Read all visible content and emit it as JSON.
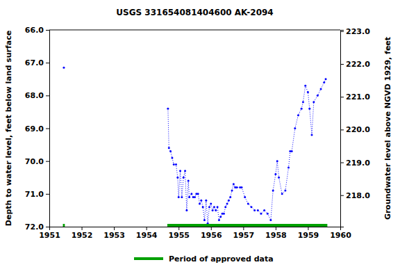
{
  "chart_data": {
    "type": "line",
    "title": "USGS 331654081404600 AK-2094",
    "y_label": "Depth to water level, feet below land surface",
    "y2_label": "Groundwater level above NGVD 1929, feet",
    "xlim": [
      1951,
      1960
    ],
    "xticks": [
      1951,
      1952,
      1953,
      1954,
      1955,
      1956,
      1957,
      1958,
      1959,
      1960
    ],
    "ylim": [
      66,
      72
    ],
    "yticks": [
      {
        "value": 66,
        "label": "66.0"
      },
      {
        "value": 67,
        "label": "67.0"
      },
      {
        "value": 68,
        "label": "68.0"
      },
      {
        "value": 69,
        "label": "69.0"
      },
      {
        "value": 70,
        "label": "70.0"
      },
      {
        "value": 71,
        "label": "71.0"
      },
      {
        "value": 72,
        "label": "72.0"
      }
    ],
    "y2lim": [
      223.04,
      217.04
    ],
    "y2ticks": [
      {
        "value": 223,
        "label": "223.0"
      },
      {
        "value": 222,
        "label": "222.0"
      },
      {
        "value": 221,
        "label": "221.0"
      },
      {
        "value": 220,
        "label": "220.0"
      },
      {
        "value": 219,
        "label": "219.0"
      },
      {
        "value": 218,
        "label": "218.0"
      }
    ],
    "grid": false,
    "legend": "bottom",
    "series": [
      {
        "type": "line",
        "color": "#0000ff",
        "line_style": "dotted",
        "marker": "circle",
        "x": [
          1951.45,
          1953.0,
          1954.67,
          1954.7,
          1954.75,
          1954.8,
          1954.85,
          1954.92,
          1954.97,
          1955.0,
          1955.05,
          1955.1,
          1955.15,
          1955.2,
          1955.25,
          1955.3,
          1955.33,
          1955.4,
          1955.45,
          1955.5,
          1955.55,
          1955.6,
          1955.65,
          1955.7,
          1955.75,
          1955.8,
          1955.85,
          1955.9,
          1955.95,
          1956.0,
          1956.05,
          1956.1,
          1956.15,
          1956.2,
          1956.25,
          1956.3,
          1956.35,
          1956.4,
          1956.45,
          1956.5,
          1956.55,
          1956.6,
          1956.65,
          1956.7,
          1956.75,
          1956.8,
          1956.9,
          1956.95,
          1957.05,
          1957.15,
          1957.25,
          1957.35,
          1957.45,
          1957.55,
          1957.65,
          1957.75,
          1957.85,
          1957.92,
          1958.0,
          1958.05,
          1958.1,
          1958.2,
          1958.3,
          1958.4,
          1958.45,
          1958.5,
          1958.6,
          1958.7,
          1958.8,
          1958.85,
          1958.92,
          1959.0,
          1959.05,
          1959.12,
          1959.18,
          1959.3,
          1959.4,
          1959.5,
          1959.55
        ],
        "values": [
          67.15,
          null,
          68.4,
          69.6,
          69.7,
          69.9,
          70.1,
          70.1,
          70.5,
          71.1,
          70.3,
          71.1,
          70.5,
          70.3,
          71.5,
          70.6,
          71.1,
          71.0,
          71.1,
          71.1,
          71.0,
          71.0,
          71.3,
          71.2,
          71.4,
          71.8,
          71.2,
          71.9,
          71.4,
          71.3,
          71.5,
          71.4,
          71.5,
          71.4,
          71.8,
          71.7,
          71.6,
          71.6,
          71.4,
          71.3,
          71.2,
          71.1,
          70.9,
          70.7,
          70.8,
          70.8,
          70.8,
          70.8,
          71.1,
          71.3,
          71.4,
          71.5,
          71.5,
          71.6,
          71.5,
          71.6,
          71.8,
          70.9,
          70.4,
          70.0,
          70.5,
          71.0,
          70.9,
          70.2,
          69.7,
          69.7,
          69.0,
          68.6,
          68.4,
          68.2,
          67.7,
          67.9,
          68.4,
          69.2,
          68.2,
          68.0,
          67.8,
          67.6,
          67.5
        ]
      },
      {
        "type": "period",
        "name": "Period of approved data",
        "color": "#00a000",
        "start": [
          1951.42,
          1954.65
        ],
        "end": [
          1951.48,
          1959.6
        ],
        "values": [
          72,
          72
        ]
      }
    ]
  }
}
